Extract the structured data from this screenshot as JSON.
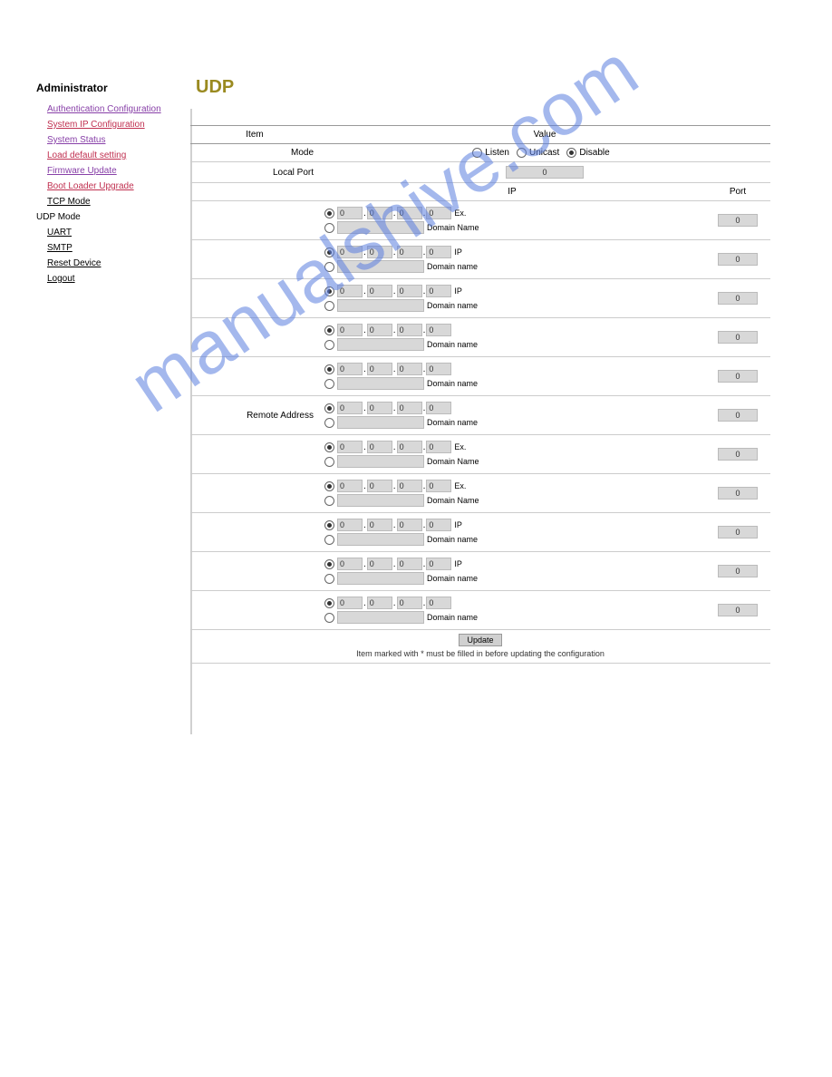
{
  "sidebar": {
    "heading": "Administrator",
    "links": [
      {
        "label": "Authentication Configuration",
        "cls": "link purple"
      },
      {
        "label": "System IP Configuration",
        "cls": "link red"
      },
      {
        "label": "System Status",
        "cls": "link purple"
      },
      {
        "label": "Load default setting",
        "cls": "link red"
      },
      {
        "label": "Firmware Update",
        "cls": "link purple"
      },
      {
        "label": "Boot Loader Upgrade",
        "cls": "link red"
      },
      {
        "label": "TCP Mode",
        "cls": "link black"
      },
      {
        "label": "UDP Mode",
        "cls": "link plain"
      },
      {
        "label": "UART",
        "cls": "link black"
      },
      {
        "label": "SMTP",
        "cls": "link black"
      },
      {
        "label": "Reset Device",
        "cls": "link black"
      },
      {
        "label": "Logout",
        "cls": "link black"
      }
    ]
  },
  "page": {
    "title": "UDP",
    "table_headers": {
      "item": "Item",
      "value": "Value"
    },
    "mode": {
      "label": "Mode",
      "options": [
        {
          "label": "Listen",
          "checked": false
        },
        {
          "label": "Unicast",
          "checked": false
        },
        {
          "label": "Disable",
          "checked": true
        }
      ]
    },
    "local_port": {
      "label": "Local Port",
      "value": "0"
    },
    "subheader": {
      "ip": "IP",
      "port": "Port"
    },
    "remote_label": "Remote Address",
    "rows": [
      {
        "sel": 1,
        "oct": [
          "0",
          "0",
          "0",
          "0"
        ],
        "afterIp": "Ex.",
        "domainLabel": "Domain Name",
        "port": "0"
      },
      {
        "sel": 1,
        "oct": [
          "0",
          "0",
          "0",
          "0"
        ],
        "afterIp": "IP",
        "domainLabel": "Domain name",
        "port": "0"
      },
      {
        "sel": 1,
        "oct": [
          "0",
          "0",
          "0",
          "0"
        ],
        "afterIp": "IP",
        "domainLabel": "Domain name",
        "port": "0"
      },
      {
        "sel": 1,
        "oct": [
          "0",
          "0",
          "0",
          "0"
        ],
        "afterIp": "",
        "domainLabel": "Domain name",
        "port": "0"
      },
      {
        "sel": 1,
        "oct": [
          "0",
          "0",
          "0",
          "0"
        ],
        "afterIp": "",
        "domainLabel": "Domain name",
        "port": "0"
      },
      {
        "sel": 1,
        "oct": [
          "0",
          "0",
          "0",
          "0"
        ],
        "afterIp": "",
        "domainLabel": "Domain name",
        "port": "0"
      },
      {
        "sel": 1,
        "oct": [
          "0",
          "0",
          "0",
          "0"
        ],
        "afterIp": "Ex.",
        "domainLabel": "Domain Name",
        "port": "0"
      },
      {
        "sel": 1,
        "oct": [
          "0",
          "0",
          "0",
          "0"
        ],
        "afterIp": "Ex.",
        "domainLabel": "Domain Name",
        "port": "0"
      },
      {
        "sel": 1,
        "oct": [
          "0",
          "0",
          "0",
          "0"
        ],
        "afterIp": "IP",
        "domainLabel": "Domain name",
        "port": "0"
      },
      {
        "sel": 1,
        "oct": [
          "0",
          "0",
          "0",
          "0"
        ],
        "afterIp": "IP",
        "domainLabel": "Domain name",
        "port": "0"
      },
      {
        "sel": 1,
        "oct": [
          "0",
          "0",
          "0",
          "0"
        ],
        "afterIp": "",
        "domainLabel": "Domain name",
        "port": "0"
      }
    ],
    "button": "Update",
    "note": "Item marked with * must be filled in before updating the configuration"
  },
  "watermark": "manualshive.com"
}
